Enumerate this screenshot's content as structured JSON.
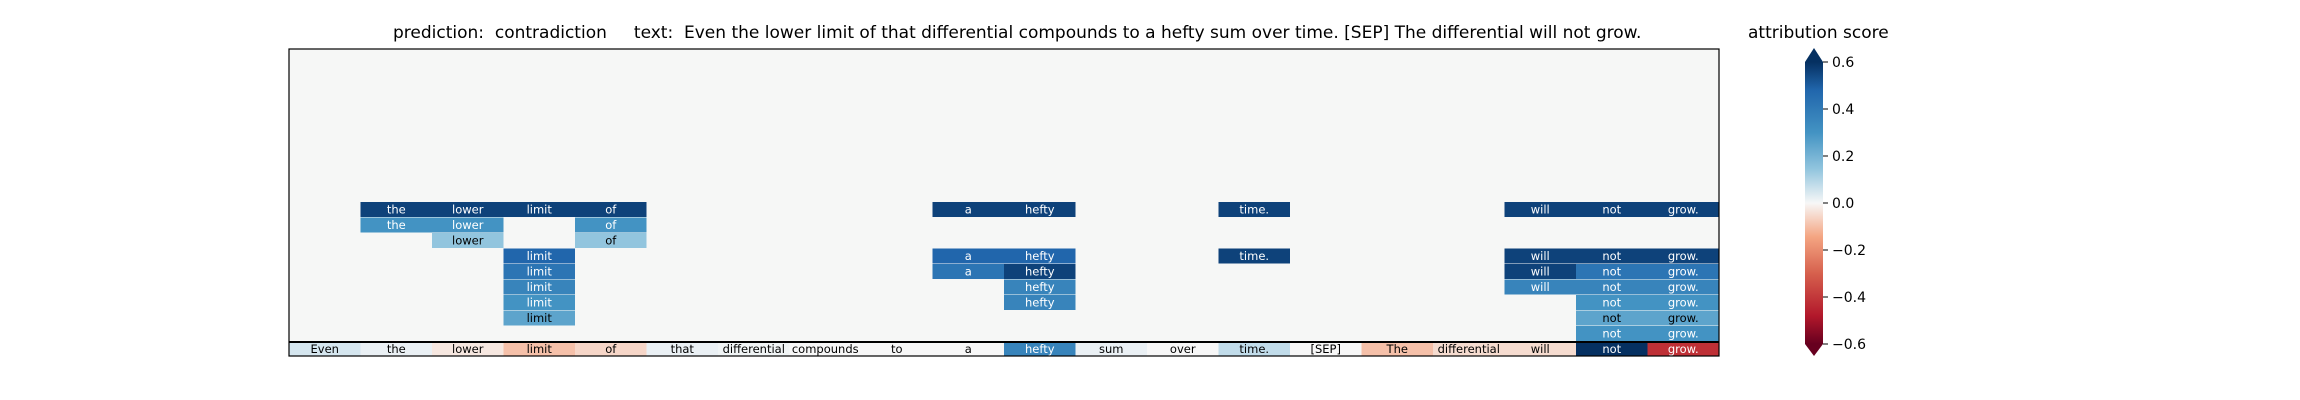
{
  "header": {
    "prediction_label": "prediction:",
    "prediction": "contradiction",
    "text_label": "text:",
    "text": "Even the lower limit of that differential compounds to a hefty sum over time. [SEP] The differential will not grow."
  },
  "colorbar": {
    "title": "attribution score",
    "min": -0.6,
    "max": 0.6,
    "ticks": [
      "0.6",
      "0.4",
      "0.2",
      "0.0",
      "−0.2",
      "−0.4",
      "−0.6"
    ]
  },
  "chart_data": {
    "type": "heatmap",
    "tokens": [
      "Even",
      "the",
      "lower",
      "limit",
      "of",
      "that",
      "differential",
      "compounds",
      "to",
      "a",
      "hefty",
      "sum",
      "over",
      "time.",
      "[SEP]",
      "The",
      "differential",
      "will",
      "not",
      "grow."
    ],
    "bottom_row_scores": [
      0.05,
      0.02,
      -0.03,
      -0.1,
      -0.06,
      0.02,
      0.01,
      0.0,
      0.0,
      0.0,
      0.35,
      0.02,
      0.0,
      0.08,
      0.0,
      -0.1,
      -0.05,
      -0.05,
      0.7,
      -0.4
    ],
    "rows": [
      [
        [
          1,
          "the",
          0.55
        ],
        [
          2,
          "lower",
          0.55
        ],
        [
          3,
          "limit",
          0.55
        ],
        [
          4,
          "of",
          0.55
        ],
        [
          9,
          "a",
          0.55
        ],
        [
          10,
          "hefty",
          0.55
        ],
        [
          13,
          "time.",
          0.55
        ],
        [
          17,
          "will",
          0.55
        ],
        [
          18,
          "not",
          0.55
        ],
        [
          19,
          "grow.",
          0.55
        ]
      ],
      [
        [
          1,
          "the",
          0.3
        ],
        [
          2,
          "lower",
          0.3
        ],
        [
          4,
          "of",
          0.3
        ]
      ],
      [
        [
          2,
          "lower",
          0.15
        ],
        [
          4,
          "of",
          0.15
        ]
      ],
      [
        [
          3,
          "limit",
          0.45
        ],
        [
          9,
          "a",
          0.45
        ],
        [
          10,
          "hefty",
          0.45
        ],
        [
          13,
          "time.",
          0.55
        ],
        [
          17,
          "will",
          0.55
        ],
        [
          18,
          "not",
          0.55
        ],
        [
          19,
          "grow.",
          0.55
        ]
      ],
      [
        [
          3,
          "limit",
          0.4
        ],
        [
          9,
          "a",
          0.4
        ],
        [
          10,
          "hefty",
          0.55
        ],
        [
          17,
          "will",
          0.55
        ],
        [
          18,
          "not",
          0.4
        ],
        [
          19,
          "grow.",
          0.4
        ]
      ],
      [
        [
          3,
          "limit",
          0.35
        ],
        [
          10,
          "hefty",
          0.35
        ],
        [
          17,
          "will",
          0.35
        ],
        [
          18,
          "not",
          0.35
        ],
        [
          19,
          "grow.",
          0.35
        ]
      ],
      [
        [
          3,
          "limit",
          0.3
        ],
        [
          10,
          "hefty",
          0.35
        ],
        [
          18,
          "not",
          0.3
        ],
        [
          19,
          "grow.",
          0.3
        ]
      ],
      [
        [
          3,
          "limit",
          0.25
        ],
        [
          18,
          "not",
          0.25
        ],
        [
          19,
          "grow.",
          0.25
        ]
      ],
      [
        [
          18,
          "not",
          0.3
        ],
        [
          19,
          "grow.",
          0.3
        ]
      ]
    ],
    "row_count": 20,
    "background_score": 0.0
  }
}
